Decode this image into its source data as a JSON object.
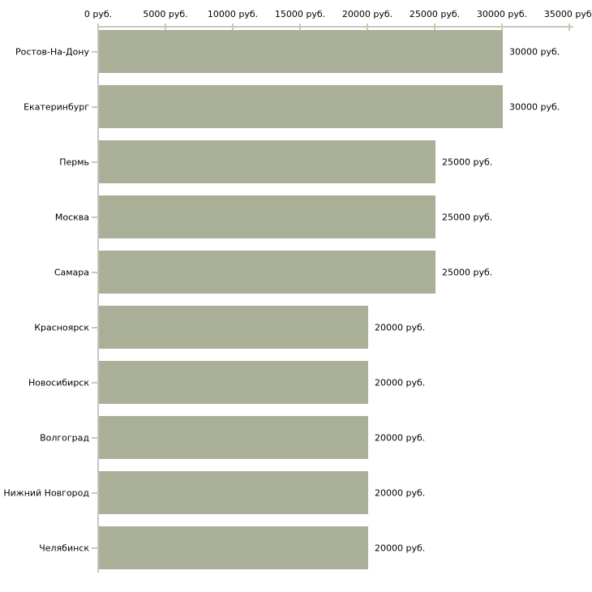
{
  "chart_data": {
    "type": "bar",
    "orientation": "horizontal",
    "title": "",
    "xlabel": "",
    "ylabel": "",
    "xlim": [
      0,
      35000
    ],
    "grid": false,
    "legend": false,
    "value_suffix": " руб.",
    "categories": [
      "Ростов-На-Дону",
      "Екатеринбург",
      "Пермь",
      "Москва",
      "Самара",
      "Красноярск",
      "Новосибирск",
      "Волгоград",
      "Нижний Новгород",
      "Челябинск"
    ],
    "values": [
      30000,
      30000,
      25000,
      25000,
      25000,
      20000,
      20000,
      20000,
      20000,
      20000
    ],
    "value_labels": [
      "30000 руб.",
      "30000 руб.",
      "25000 руб.",
      "25000 руб.",
      "25000 руб.",
      "20000 руб.",
      "20000 руб.",
      "20000 руб.",
      "20000 руб.",
      "20000 руб."
    ],
    "x_tick_values": [
      0,
      5000,
      10000,
      15000,
      20000,
      25000,
      30000,
      35000
    ],
    "x_tick_labels": [
      "0 руб.",
      "5000 руб.",
      "10000 руб.",
      "15000 руб.",
      "20000 руб.",
      "25000 руб.",
      "30000 руб.",
      "35000 руб."
    ],
    "colors": {
      "bar": "#aab098",
      "axis": "#c6c6c6",
      "tick": "#cbcda1",
      "text": "#000000",
      "background": "#ffffff"
    }
  }
}
